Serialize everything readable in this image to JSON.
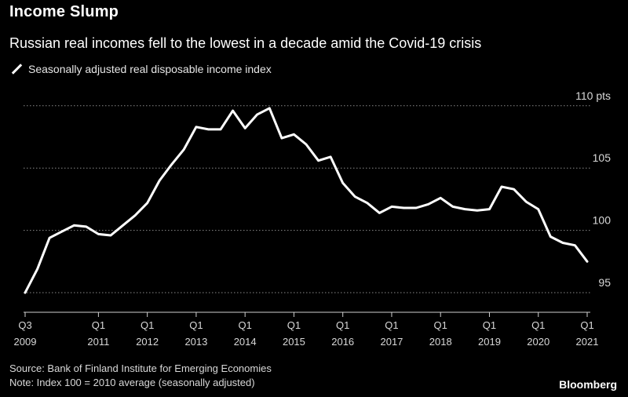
{
  "header": {
    "title": "Income Slump",
    "subtitle": "Russian real incomes fell to the lowest in a decade amid the Covid-19 crisis"
  },
  "footer": {
    "source": "Source: Bank of Finland Institute for Emerging Economies",
    "note": "Note: Index 100 = 2010 average (seasonally adjusted)",
    "brand": "Bloomberg"
  },
  "colors": {
    "background": "#000000",
    "line": "#ffffff",
    "grid": "#8a8a8a"
  },
  "chart_data": {
    "type": "line",
    "title": "Income Slump",
    "subtitle": "Russian real incomes fell to the lowest in a decade amid the Covid-19 crisis",
    "series": [
      {
        "name": "Seasonally adjusted real disposable income index",
        "color": "#ffffff",
        "points": [
          [
            "2009-Q3",
            95.0
          ],
          [
            "2009-Q4",
            96.9
          ],
          [
            "2010-Q1",
            99.4
          ],
          [
            "2010-Q2",
            99.9
          ],
          [
            "2010-Q3",
            100.4
          ],
          [
            "2010-Q4",
            100.3
          ],
          [
            "2011-Q1",
            99.7
          ],
          [
            "2011-Q2",
            99.6
          ],
          [
            "2011-Q3",
            100.4
          ],
          [
            "2011-Q4",
            101.2
          ],
          [
            "2012-Q1",
            102.2
          ],
          [
            "2012-Q2",
            104.0
          ],
          [
            "2012-Q3",
            105.3
          ],
          [
            "2012-Q4",
            106.5
          ],
          [
            "2013-Q1",
            108.3
          ],
          [
            "2013-Q2",
            108.1
          ],
          [
            "2013-Q3",
            108.1
          ],
          [
            "2013-Q4",
            109.6
          ],
          [
            "2014-Q1",
            108.2
          ],
          [
            "2014-Q2",
            109.3
          ],
          [
            "2014-Q3",
            109.8
          ],
          [
            "2014-Q4",
            107.4
          ],
          [
            "2015-Q1",
            107.7
          ],
          [
            "2015-Q2",
            106.9
          ],
          [
            "2015-Q3",
            105.6
          ],
          [
            "2015-Q4",
            105.9
          ],
          [
            "2016-Q1",
            103.8
          ],
          [
            "2016-Q2",
            102.7
          ],
          [
            "2016-Q3",
            102.2
          ],
          [
            "2016-Q4",
            101.4
          ],
          [
            "2017-Q1",
            101.9
          ],
          [
            "2017-Q2",
            101.8
          ],
          [
            "2017-Q3",
            101.8
          ],
          [
            "2017-Q4",
            102.1
          ],
          [
            "2018-Q1",
            102.6
          ],
          [
            "2018-Q2",
            101.9
          ],
          [
            "2018-Q3",
            101.7
          ],
          [
            "2018-Q4",
            101.6
          ],
          [
            "2019-Q1",
            101.7
          ],
          [
            "2019-Q2",
            103.5
          ],
          [
            "2019-Q3",
            103.3
          ],
          [
            "2019-Q4",
            102.3
          ],
          [
            "2020-Q1",
            101.7
          ],
          [
            "2020-Q2",
            99.5
          ],
          [
            "2020-Q3",
            99.0
          ],
          [
            "2020-Q4",
            98.8
          ],
          [
            "2021-Q1",
            97.5
          ]
        ]
      }
    ],
    "ylim": [
      94.5,
      110.3
    ],
    "yticks": [
      95,
      100,
      105,
      110
    ],
    "ytick_labels": [
      "95",
      "100",
      "105",
      "110 pts"
    ],
    "xlim": [
      "2009-Q3",
      "2021-Q1"
    ],
    "xticks": [
      {
        "at": "2009-Q3",
        "line1": "Q3",
        "line2": "2009"
      },
      {
        "at": "2011-Q1",
        "line1": "Q1",
        "line2": "2011"
      },
      {
        "at": "2012-Q1",
        "line1": "Q1",
        "line2": "2012"
      },
      {
        "at": "2013-Q1",
        "line1": "Q1",
        "line2": "2013"
      },
      {
        "at": "2014-Q1",
        "line1": "Q1",
        "line2": "2014"
      },
      {
        "at": "2015-Q1",
        "line1": "Q1",
        "line2": "2015"
      },
      {
        "at": "2016-Q1",
        "line1": "Q1",
        "line2": "2016"
      },
      {
        "at": "2017-Q1",
        "line1": "Q1",
        "line2": "2017"
      },
      {
        "at": "2018-Q1",
        "line1": "Q1",
        "line2": "2018"
      },
      {
        "at": "2019-Q1",
        "line1": "Q1",
        "line2": "2019"
      },
      {
        "at": "2020-Q1",
        "line1": "Q1",
        "line2": "2020"
      },
      {
        "at": "2021-Q1",
        "line1": "Q1",
        "line2": "2021"
      }
    ],
    "grid": true,
    "grid_style": "dotted",
    "legend_position": "top-left"
  }
}
